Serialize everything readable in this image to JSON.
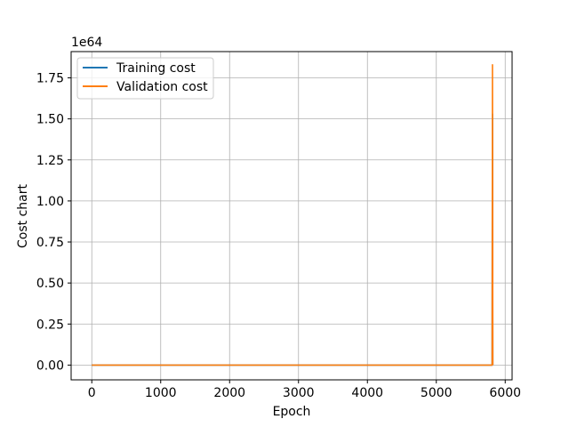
{
  "chart_data": {
    "type": "line",
    "title": "",
    "xlabel": "Epoch",
    "ylabel": "Cost chart",
    "y_offset_label": "1e64",
    "y_scale_note": "values in units of 1e64",
    "xlim": [
      -300,
      6100
    ],
    "ylim": [
      -0.09,
      1.91
    ],
    "x_ticks": [
      0,
      1000,
      2000,
      3000,
      4000,
      5000,
      6000
    ],
    "x_tick_labels": [
      "0",
      "1000",
      "2000",
      "3000",
      "4000",
      "5000",
      "6000"
    ],
    "y_ticks": [
      0.0,
      0.25,
      0.5,
      0.75,
      1.0,
      1.25,
      1.5,
      1.75
    ],
    "y_tick_labels": [
      "0.00",
      "0.25",
      "0.50",
      "0.75",
      "1.00",
      "1.25",
      "1.50",
      "1.75"
    ],
    "grid": true,
    "legend_position": "top-left",
    "series": [
      {
        "name": "Training cost",
        "color": "#1f77b4",
        "x": [
          0,
          5810,
          5815,
          5820
        ],
        "y": [
          0.0,
          0.0,
          1.53,
          0.0
        ]
      },
      {
        "name": "Validation cost",
        "color": "#ff7f0e",
        "x": [
          0,
          5810,
          5815,
          5820
        ],
        "y": [
          0.0,
          0.0,
          1.83,
          0.0
        ]
      }
    ]
  }
}
